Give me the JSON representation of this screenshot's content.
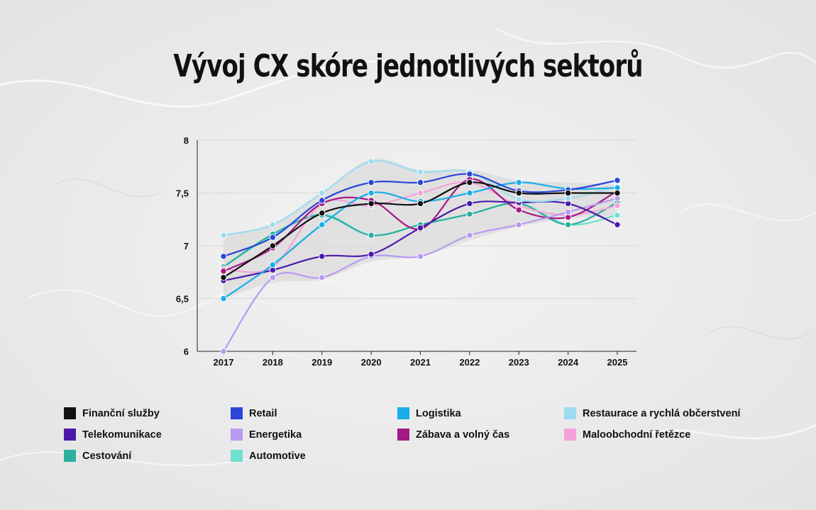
{
  "title": "Vývoj CX skóre jednotlivých sektorů",
  "chart_data": {
    "type": "line",
    "title": "Vývoj CX skóre jednotlivých sektorů",
    "xlabel": "",
    "ylabel": "",
    "x": [
      "2017",
      "2018",
      "2019",
      "2020",
      "2021",
      "2022",
      "2023",
      "2024",
      "2025"
    ],
    "ylim": [
      6,
      8
    ],
    "yticks": [
      {
        "value": 6,
        "label": "6"
      },
      {
        "value": 6.5,
        "label": "6,5"
      },
      {
        "value": 7,
        "label": "7"
      },
      {
        "value": 7.5,
        "label": "7,5"
      },
      {
        "value": 8,
        "label": "8"
      }
    ],
    "grid": true,
    "legend_position": "bottom",
    "band": {
      "upper": [
        7.1,
        7.2,
        7.5,
        7.82,
        7.72,
        7.72,
        7.62,
        7.6,
        7.58
      ],
      "lower": [
        6.5,
        6.65,
        6.68,
        6.85,
        6.9,
        7.05,
        7.18,
        7.26,
        7.28
      ],
      "color": "#d4d4d4"
    },
    "series": [
      {
        "name": "Finanční služby",
        "color": "#111111",
        "values": [
          6.7,
          7.0,
          7.31,
          7.4,
          7.4,
          7.6,
          7.5,
          7.5,
          7.5
        ]
      },
      {
        "name": "Retail",
        "color": "#2b46d8",
        "values": [
          6.9,
          7.08,
          7.43,
          7.6,
          7.6,
          7.68,
          7.52,
          7.53,
          7.62
        ]
      },
      {
        "name": "Logistika",
        "color": "#19aee8",
        "values": [
          6.5,
          6.82,
          7.2,
          7.5,
          7.42,
          7.5,
          7.6,
          7.54,
          7.55
        ]
      },
      {
        "name": "Restaurace a rychlá občerstvení",
        "color": "#9ddcf0",
        "values": [
          7.1,
          7.2,
          7.5,
          7.8,
          7.7,
          7.7,
          7.44,
          7.45,
          7.56
        ]
      },
      {
        "name": "Telekomunikace",
        "color": "#4b1aaa",
        "values": [
          6.67,
          6.77,
          6.9,
          6.92,
          7.17,
          7.4,
          7.41,
          7.4,
          7.2
        ]
      },
      {
        "name": "Energetika",
        "color": "#b89af0",
        "values": [
          6.0,
          6.7,
          6.7,
          6.9,
          6.9,
          7.1,
          7.2,
          7.32,
          7.45
        ]
      },
      {
        "name": "Zábava a volný čas",
        "color": "#a31a86",
        "values": [
          6.76,
          6.98,
          7.4,
          7.43,
          7.16,
          7.63,
          7.34,
          7.27,
          7.52
        ]
      },
      {
        "name": "Maloobchodní řetězce",
        "color": "#f3a3d6",
        "values": [
          6.78,
          6.8,
          7.4,
          7.38,
          7.5,
          7.6,
          7.38,
          7.29,
          7.38
        ]
      },
      {
        "name": "Cestování",
        "color": "#29b0a0",
        "values": [
          6.8,
          7.11,
          7.29,
          7.1,
          7.2,
          7.3,
          7.4,
          7.2,
          7.41
        ]
      },
      {
        "name": "Automotive",
        "color": "#6fe0d0",
        "values": [
          6.8,
          7.1,
          7.3,
          7.1,
          7.2,
          7.3,
          7.4,
          7.2,
          7.29
        ]
      }
    ]
  }
}
